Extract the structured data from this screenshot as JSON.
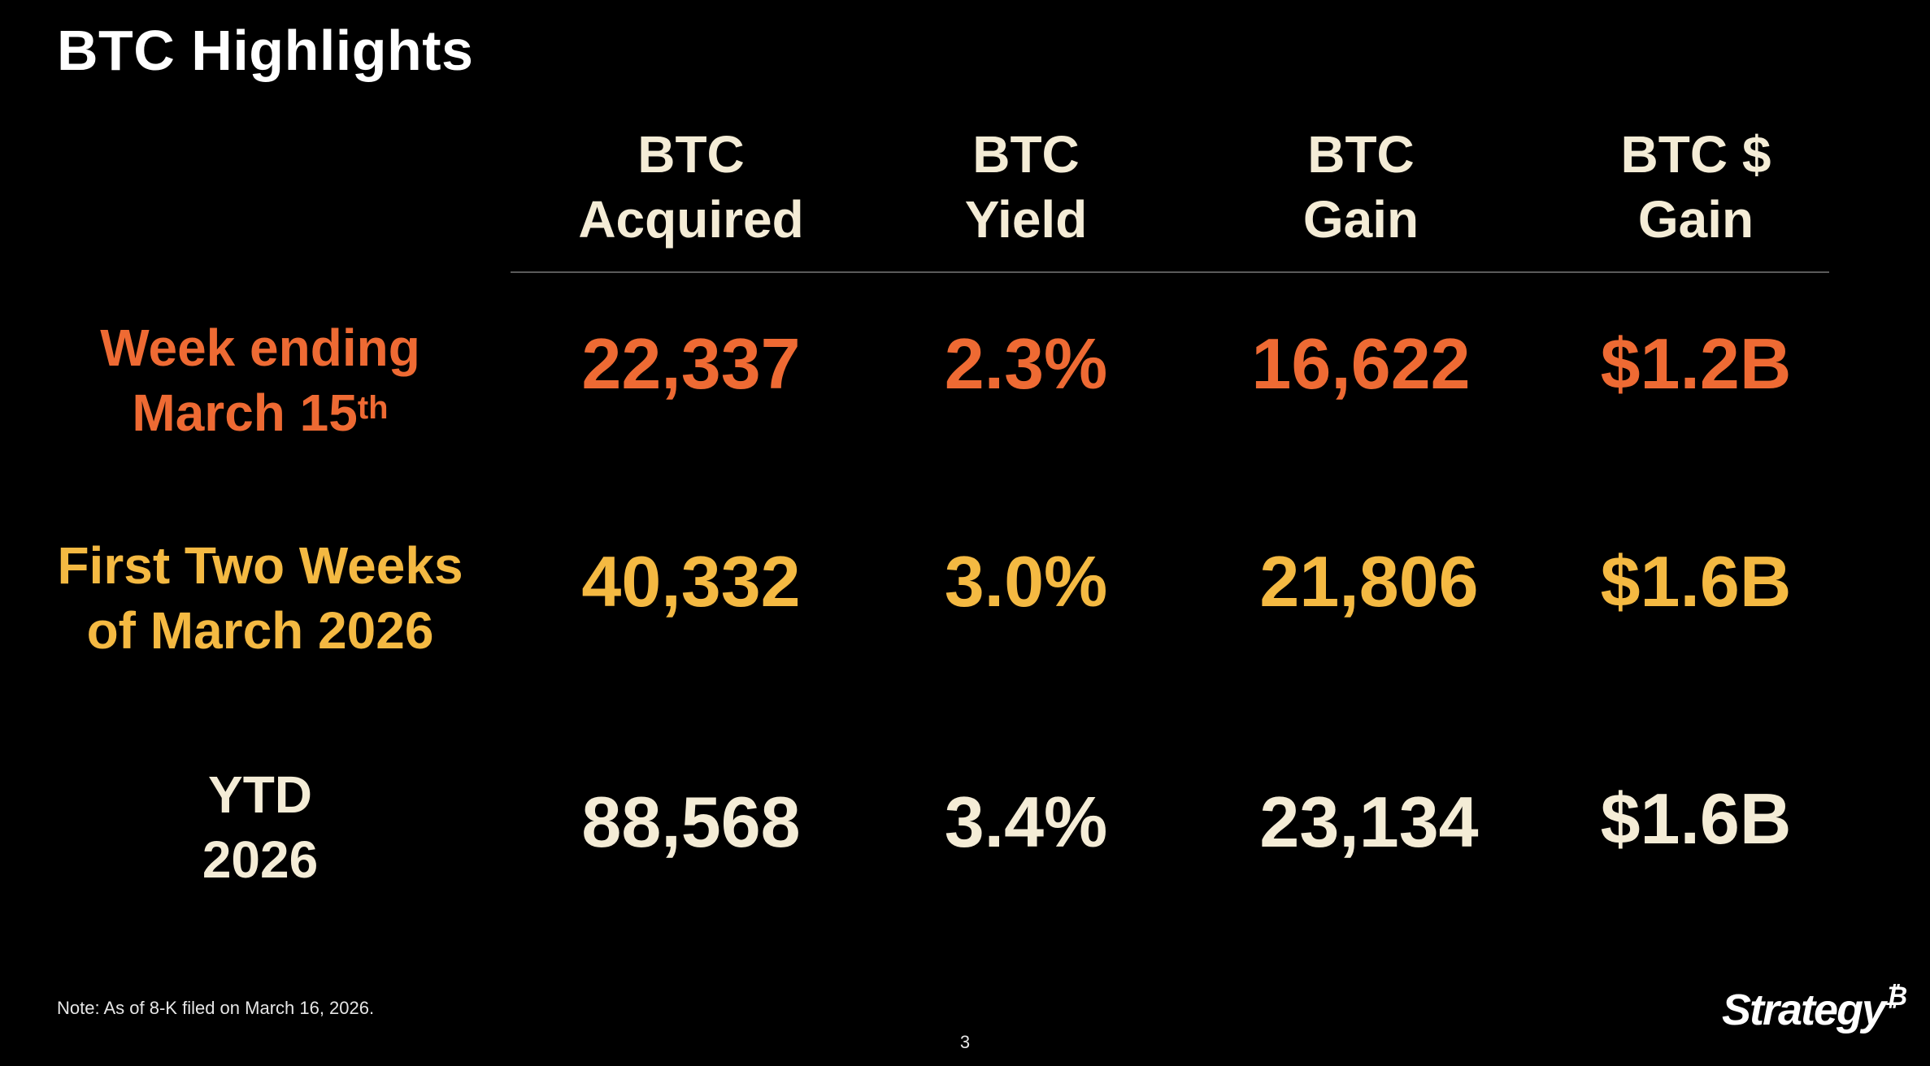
{
  "title": "BTC Highlights",
  "colors": {
    "orange": "#ee6a33",
    "gold": "#f4b942",
    "cream": "#f4ecd6"
  },
  "columns": [
    {
      "line1": "BTC",
      "line2": "Acquired"
    },
    {
      "line1": "BTC",
      "line2": "Yield"
    },
    {
      "line1": "BTC",
      "line2": "Gain"
    },
    {
      "line1": "BTC $",
      "line2": "Gain"
    }
  ],
  "rows": [
    {
      "label_line1": "Week ending",
      "label_line2": "March 15",
      "label_sup": "th",
      "values": [
        "22,337",
        "2.3%",
        "16,622",
        "$1.2B"
      ]
    },
    {
      "label_line1": "First Two Weeks",
      "label_line2": "of March 2026",
      "label_sup": "",
      "values": [
        "40,332",
        "3.0%",
        "21,806",
        "$1.6B"
      ]
    },
    {
      "label_line1": "YTD",
      "label_line2": "2026",
      "label_sup": "",
      "values": [
        "88,568",
        "3.4%",
        "23,134",
        "$1.6B"
      ]
    }
  ],
  "note": "Note: As of 8-K filed on March 16, 2026.",
  "page_number": "3",
  "logo": {
    "text": "Strategy",
    "mark": "₿"
  }
}
